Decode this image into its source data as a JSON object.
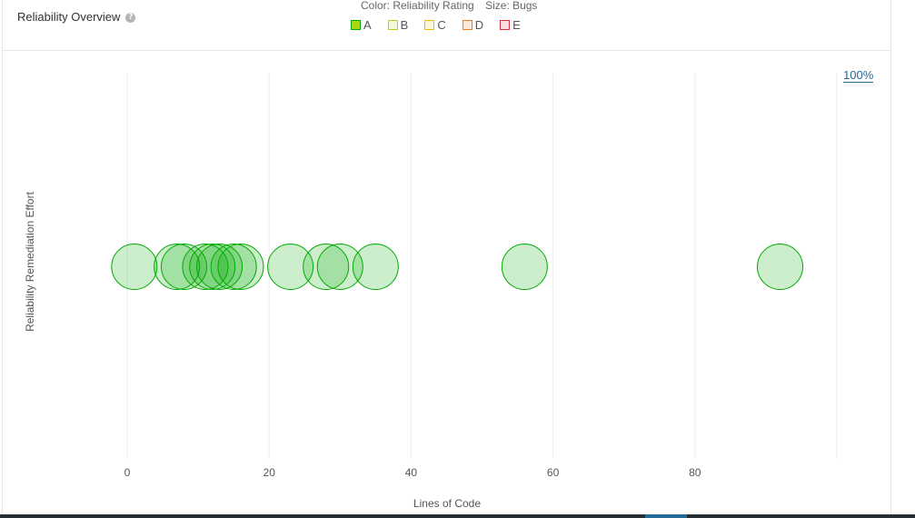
{
  "header": {
    "title": "Reliability Overview",
    "help_icon": "question-circle-icon",
    "color_caption": "Color: Reliability Rating",
    "size_caption": "Size: Bugs",
    "legend": [
      {
        "label": "A",
        "border": "#00aa00",
        "fill": "#b0d513"
      },
      {
        "label": "B",
        "border": "#b0d513",
        "fill": "#f4f9dc"
      },
      {
        "label": "C",
        "border": "#eabe06",
        "fill": "#fcf6d8"
      },
      {
        "label": "D",
        "border": "#ed7d20",
        "fill": "#fce9d9"
      },
      {
        "label": "E",
        "border": "#d4333f",
        "fill": "#f8dcde"
      }
    ],
    "zoom_reset": "100%"
  },
  "chart_data": {
    "type": "scatter",
    "title": "",
    "xlabel": "Lines of Code",
    "ylabel": "Reliability Remediation Effort",
    "xlim": [
      -2,
      100
    ],
    "xticks": [
      0,
      20,
      40,
      60,
      80
    ],
    "ylim": [
      -1,
      1
    ],
    "grid": "vertical",
    "marker_color": "#00aa00",
    "rating": "A",
    "points": [
      {
        "x": 1,
        "y": 0
      },
      {
        "x": 7,
        "y": 0
      },
      {
        "x": 8,
        "y": 0
      },
      {
        "x": 11,
        "y": 0
      },
      {
        "x": 12,
        "y": 0
      },
      {
        "x": 13,
        "y": 0
      },
      {
        "x": 15,
        "y": 0
      },
      {
        "x": 16,
        "y": 0
      },
      {
        "x": 23,
        "y": 0
      },
      {
        "x": 28,
        "y": 0
      },
      {
        "x": 30,
        "y": 0
      },
      {
        "x": 35,
        "y": 0
      },
      {
        "x": 56,
        "y": 0
      },
      {
        "x": 92,
        "y": 0
      }
    ]
  }
}
